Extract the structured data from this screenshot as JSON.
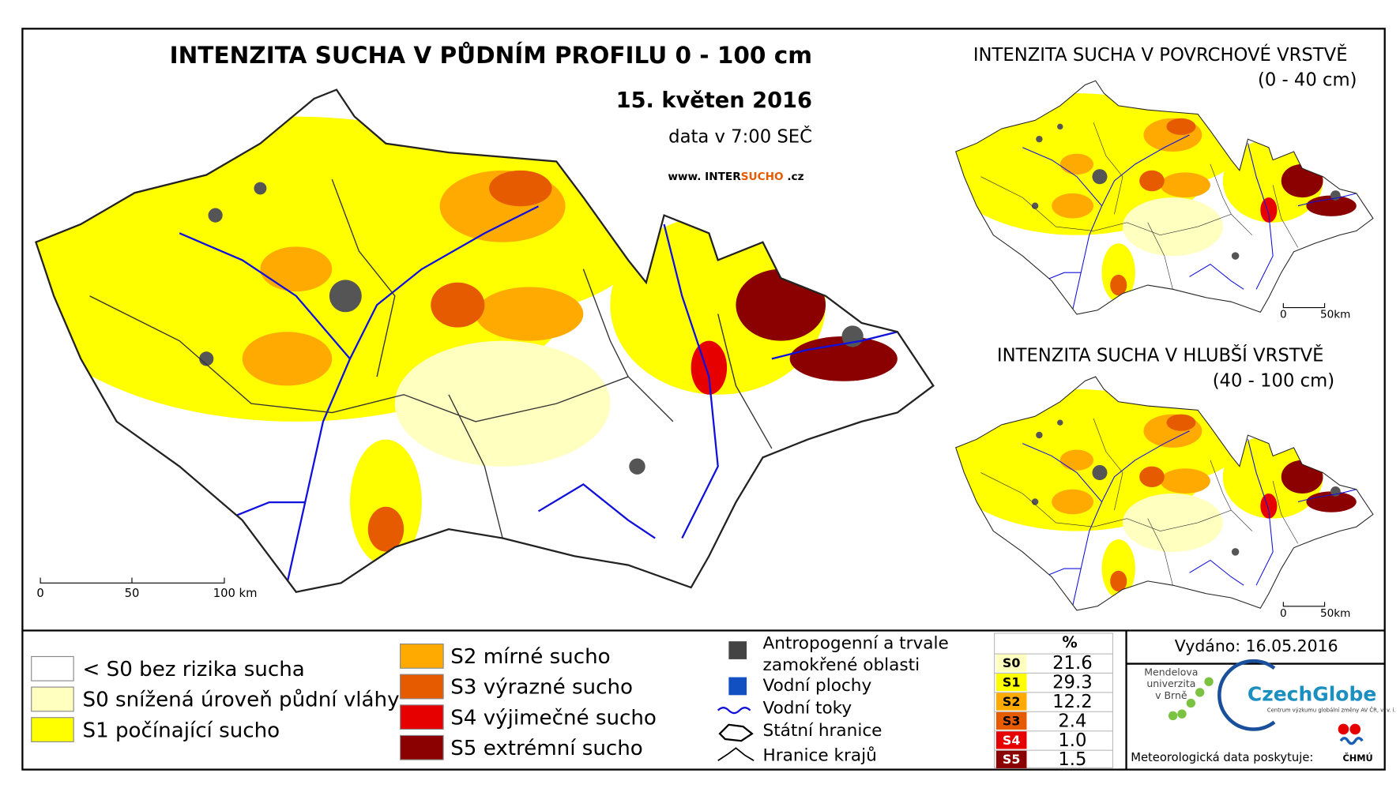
{
  "header": {
    "title": "INTENZITA SUCHA V PŮDNÍM PROFILU 0 - 100 cm",
    "date": "15. květen 2016",
    "time": "data v 7:00 SEČ",
    "website": [
      "www. INTER",
      "SUCHO",
      " .cz"
    ]
  },
  "scale_bar": [
    "0",
    "50",
    "100 km"
  ],
  "insets": [
    {
      "title": "INTENZITA SUCHA V POVRCHOVÉ VRSTVĚ",
      "depth": "(0 - 40 cm)",
      "scale": [
        "0",
        "50km"
      ]
    },
    {
      "title": "INTENZITA SUCHA V HLUBŠÍ VRSTVĚ",
      "depth": "(40 - 100 cm)",
      "scale": [
        "0",
        "50km"
      ]
    }
  ],
  "legend": {
    "classes": [
      {
        "label": "< S0 bez rizika sucha",
        "color": "#ffffff"
      },
      {
        "label": "S0 snížená úroveň půdní vláhy",
        "color": "#ffffc0"
      },
      {
        "label": "S1 počínající sucho",
        "color": "#ffff00"
      },
      {
        "label": "S2 mírné sucho",
        "color": "#ffaa00"
      },
      {
        "label": "S3 výrazné sucho",
        "color": "#e65a00"
      },
      {
        "label": "S4 výjimečné sucho",
        "color": "#e60000"
      },
      {
        "label": "S5 extrémní sucho",
        "color": "#8b0000"
      }
    ],
    "overlays": [
      {
        "label": [
          "Antropogenní a trvale",
          "zamokřené oblasti"
        ]
      },
      {
        "label": [
          "Vodní plochy"
        ]
      },
      {
        "label": [
          "Vodní toky"
        ]
      },
      {
        "label": [
          "Státní hranice"
        ]
      },
      {
        "label": [
          "Hranice krajů"
        ]
      }
    ]
  },
  "table": {
    "header": "%",
    "rows": [
      [
        "S0",
        "21.6"
      ],
      [
        "S1",
        "29.3"
      ],
      [
        "S2",
        "12.2"
      ],
      [
        "S3",
        "2.4"
      ],
      [
        "S4",
        "1.0"
      ],
      [
        "S5",
        "1.5"
      ]
    ]
  },
  "issued": "Vydáno: 16.05.2016",
  "logos": {
    "mendel": [
      "Mendelova",
      "univerzita",
      "v Brně"
    ],
    "czechglobe": "CzechGlobe",
    "czechglobe_sub": "Centrum výzkumu globální změny AV ČR, v. v. i.",
    "chmu": "ČHMÚ"
  },
  "provider": "Meteorologická data poskytuje:"
}
